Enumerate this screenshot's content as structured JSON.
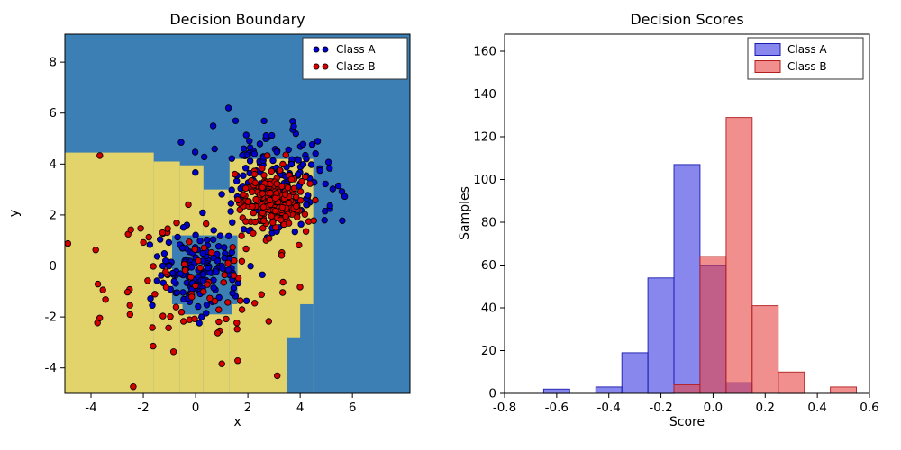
{
  "figure": {
    "background": "#ffffff"
  },
  "chart_data": [
    {
      "type": "scatter",
      "title": "Decision Boundary",
      "xlabel": "x",
      "ylabel": "y",
      "xlim": [
        -5.0,
        8.2
      ],
      "ylim": [
        -5.0,
        9.1
      ],
      "xtick_values": [
        -4,
        -2,
        0,
        2,
        4,
        6
      ],
      "xtick_labels": [
        "-4",
        "-2",
        "0",
        "2",
        "4",
        "6"
      ],
      "ytick_values": [
        -4,
        -2,
        0,
        2,
        4,
        6,
        8
      ],
      "ytick_labels": [
        "-4",
        "-2",
        "0",
        "2",
        "4",
        "6",
        "8"
      ],
      "point_radius": 3.3,
      "decision_regions": {
        "class_a_color": "#3b7fb4",
        "class_b_color": "#e2d36b",
        "class_b_rects": [
          [
            -5.2,
            -5.0,
            3.6,
            9.45
          ],
          [
            -1.6,
            -5.0,
            1.0,
            9.1
          ],
          [
            -0.6,
            -5.0,
            0.9,
            8.95
          ],
          [
            0.3,
            -5.0,
            1.0,
            8.0
          ],
          [
            1.3,
            -5.0,
            3.2,
            9.2
          ]
        ],
        "class_a_overlay_rects": [
          [
            -0.9,
            -1.5,
            2.5,
            2.7
          ],
          [
            -0.5,
            -1.9,
            1.9,
            0.45
          ],
          [
            3.5,
            -5.0,
            1.0,
            2.2
          ],
          [
            4.0,
            -5.0,
            0.5,
            3.5
          ]
        ]
      },
      "series": [
        {
          "name": "Class A",
          "color": "#0000c8",
          "clusters": [
            {
              "cx": 0.1,
              "cy": -0.15,
              "sx": 0.8,
              "sy": 0.75,
              "n": 150
            },
            {
              "cx": 3.1,
              "cy": 3.5,
              "sx": 1.15,
              "sy": 1.05,
              "n": 160
            }
          ]
        },
        {
          "name": "Class B",
          "color": "#d40000",
          "clusters": [
            {
              "cx": 3.0,
              "cy": 2.5,
              "sx": 0.62,
              "sy": 0.58,
              "n": 210
            },
            {
              "cx": -0.3,
              "cy": -0.8,
              "sx": 2.0,
              "sy": 1.6,
              "n": 90
            }
          ]
        }
      ],
      "seed": 20
    },
    {
      "type": "histogram",
      "title": "Decision Scores",
      "xlabel": "Score",
      "ylabel": "Samples",
      "xlim": [
        -0.8,
        0.6
      ],
      "ylim": [
        0,
        168
      ],
      "xtick_values": [
        -0.8,
        -0.6,
        -0.4,
        -0.2,
        0.0,
        0.2,
        0.4,
        0.6
      ],
      "xtick_labels": [
        "-0.8",
        "-0.6",
        "-0.4",
        "-0.2",
        "0.0",
        "0.2",
        "0.4",
        "0.6"
      ],
      "ytick_values": [
        0,
        20,
        40,
        60,
        80,
        100,
        120,
        140,
        160
      ],
      "ytick_labels": [
        "0",
        "20",
        "40",
        "60",
        "80",
        "100",
        "120",
        "140",
        "160"
      ],
      "bin_edges": [
        -0.65,
        -0.55,
        -0.45,
        -0.35,
        -0.25,
        -0.15,
        -0.05,
        0.05,
        0.15,
        0.25,
        0.35,
        0.45,
        0.55
      ],
      "series": [
        {
          "name": "Class A",
          "counts": [
            2,
            0,
            3,
            19,
            54,
            107,
            60,
            5,
            0,
            0,
            0,
            0
          ],
          "fill": "#2525e0",
          "edge": "#1a1aae",
          "alpha": 0.55
        },
        {
          "name": "Class B",
          "counts": [
            0,
            0,
            0,
            0,
            0,
            4,
            64,
            129,
            41,
            10,
            0,
            3
          ],
          "fill": "#e84545",
          "edge": "#b21e1e",
          "alpha": 0.6
        }
      ]
    }
  ]
}
